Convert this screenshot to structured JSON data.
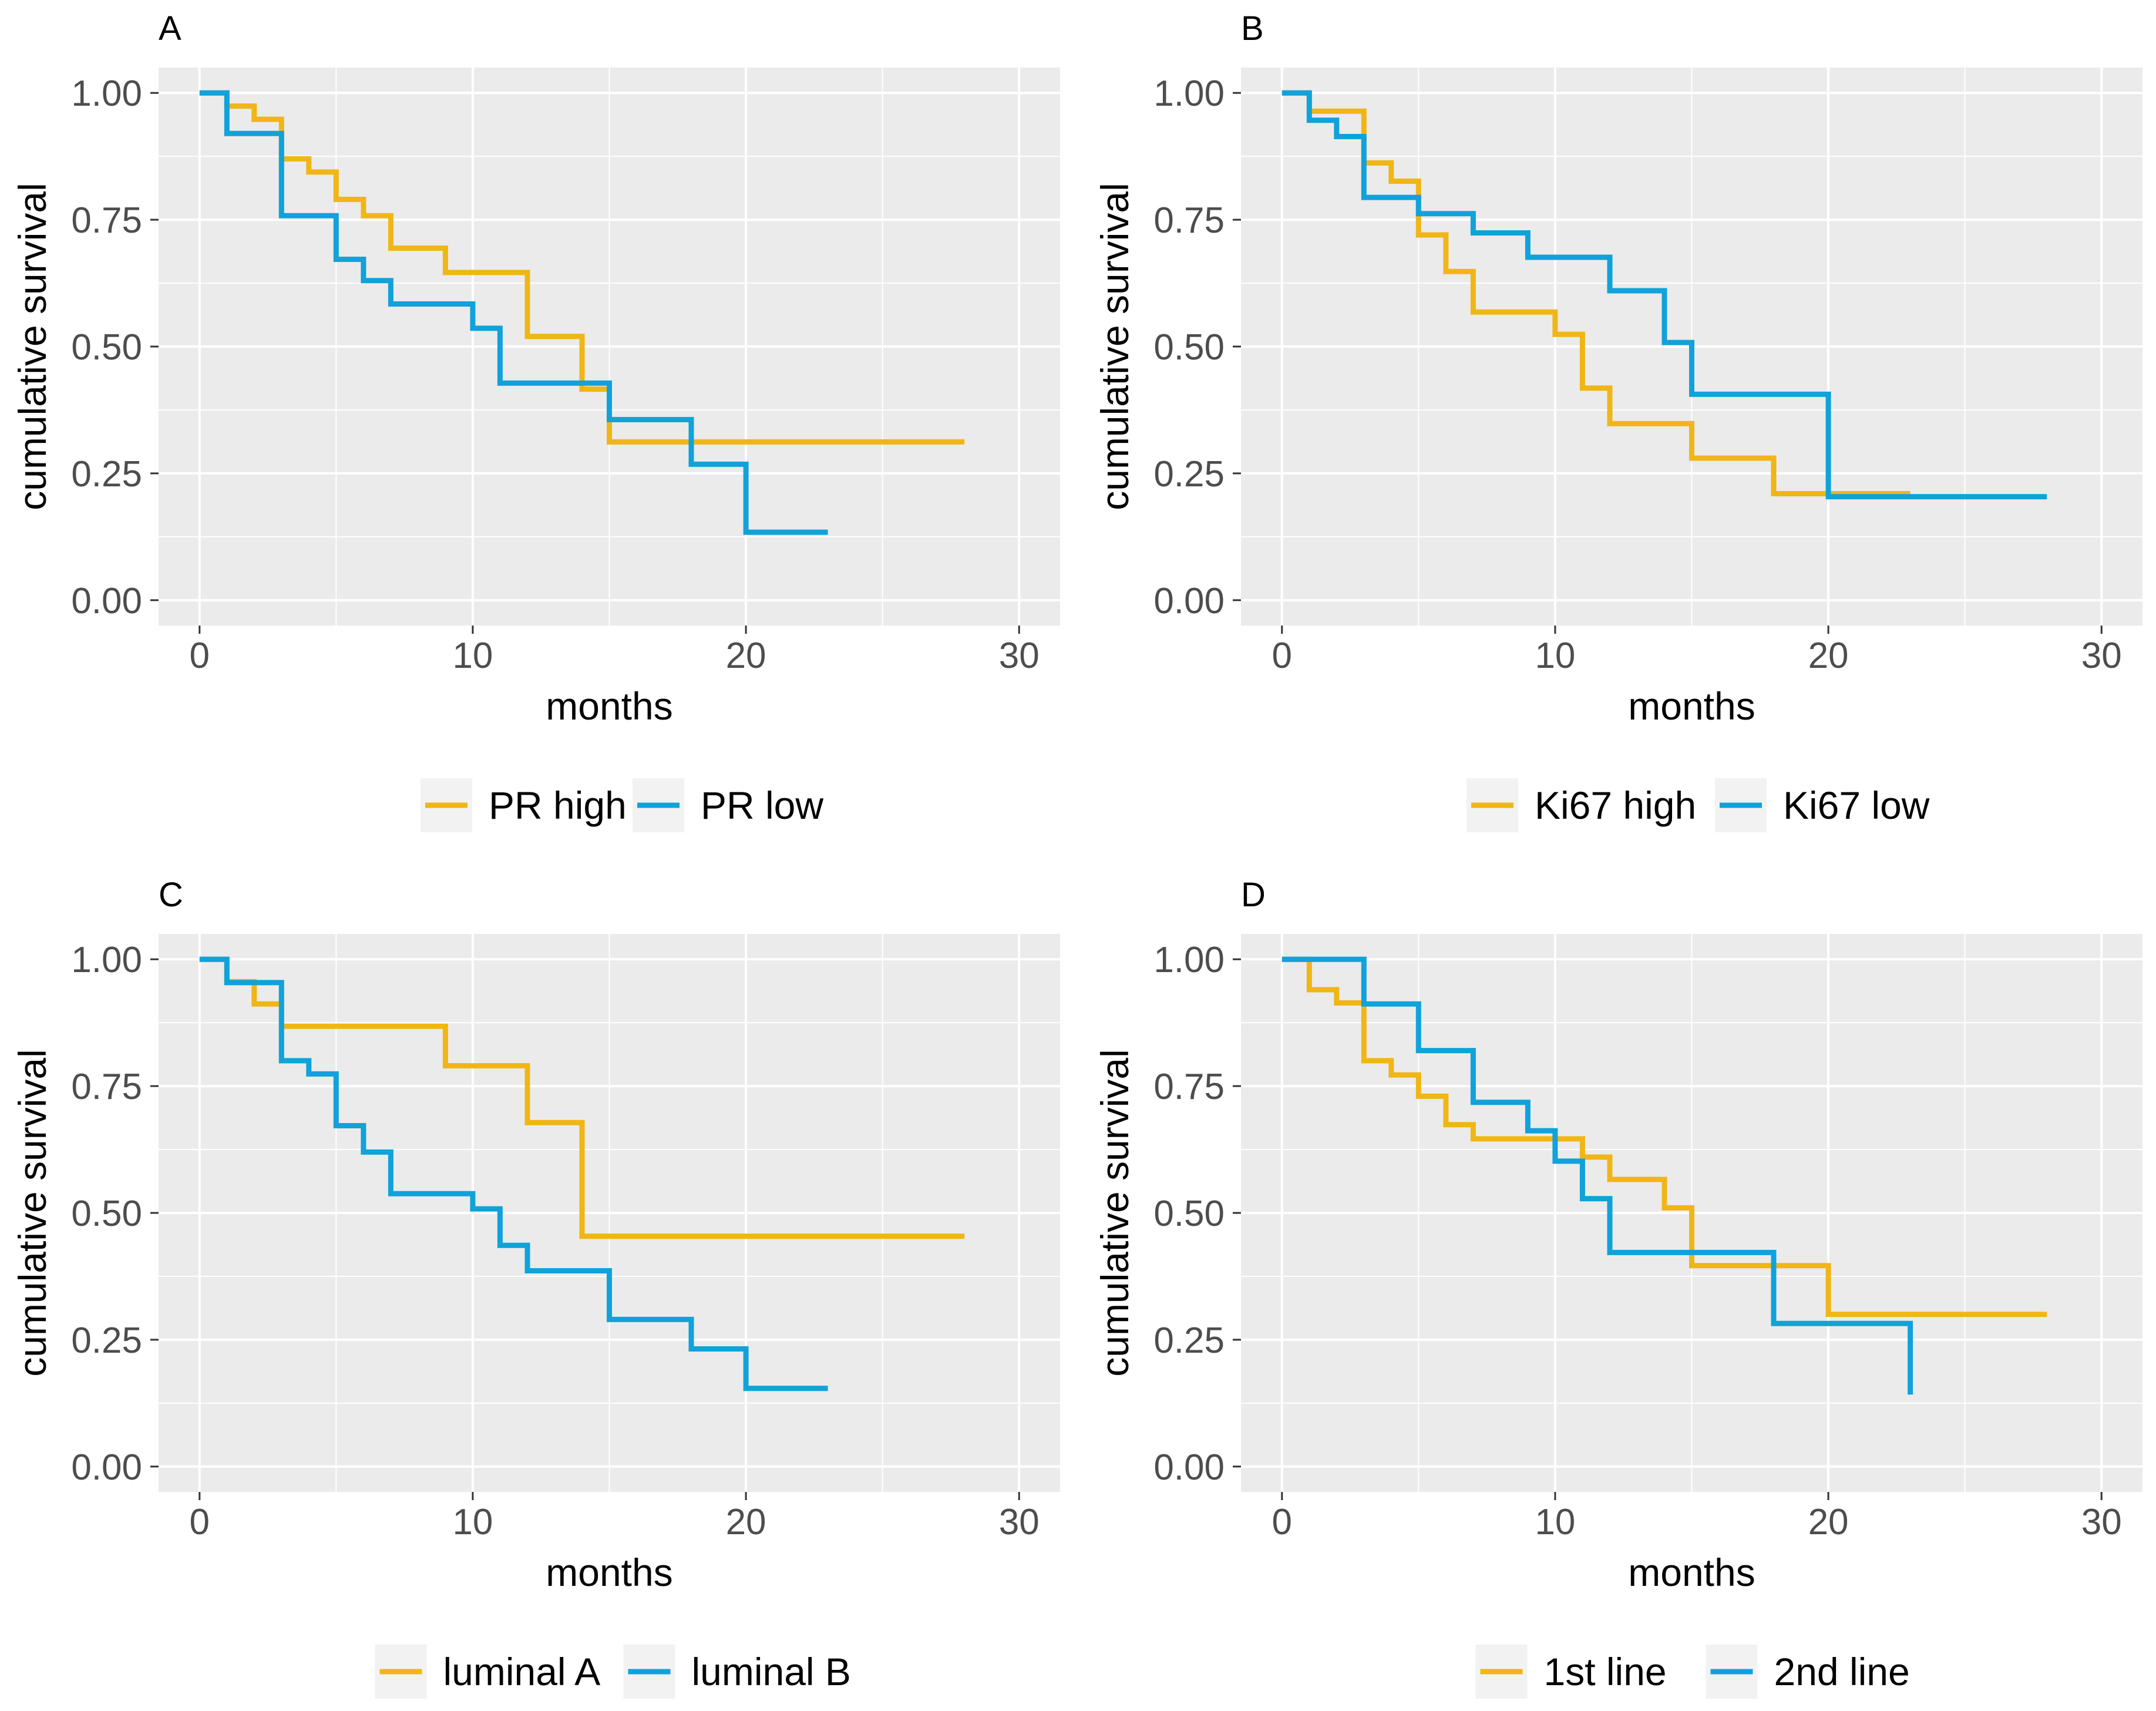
{
  "palette": {
    "high": "#F0B616",
    "low": "#10A2DA",
    "panel_bg": "#EBEBEB",
    "grid": "#FFFFFF"
  },
  "chart_data": [
    {
      "type": "line",
      "subtype": "step (Kaplan-Meier)",
      "panel": "A",
      "xlabel": "months",
      "ylabel": "cumulative survival",
      "xlim": [
        -1.5,
        31.5
      ],
      "ylim": [
        -0.05,
        1.05
      ],
      "x_ticks": [
        "0",
        "10",
        "20",
        "30"
      ],
      "y_ticks": [
        "0.00",
        "0.25",
        "0.50",
        "0.75",
        "1.00"
      ],
      "grid": true,
      "legend_position": "bottom",
      "series": [
        {
          "name": "PR high",
          "color": "#F0B616",
          "points": [
            [
              0,
              1.0
            ],
            [
              1,
              1.0
            ],
            [
              1,
              0.974
            ],
            [
              2,
              0.974
            ],
            [
              2,
              0.948
            ],
            [
              3,
              0.948
            ],
            [
              3,
              0.87
            ],
            [
              4,
              0.87
            ],
            [
              4,
              0.844
            ],
            [
              5,
              0.844
            ],
            [
              5,
              0.79
            ],
            [
              6,
              0.79
            ],
            [
              6,
              0.758
            ],
            [
              7,
              0.758
            ],
            [
              7,
              0.694
            ],
            [
              9,
              0.694
            ],
            [
              9,
              0.646
            ],
            [
              12,
              0.646
            ],
            [
              12,
              0.52
            ],
            [
              14,
              0.52
            ],
            [
              14,
              0.416
            ],
            [
              15,
              0.416
            ],
            [
              15,
              0.312
            ],
            [
              28,
              0.312
            ]
          ]
        },
        {
          "name": "PR low",
          "color": "#10A2DA",
          "points": [
            [
              0,
              1.0
            ],
            [
              1,
              1.0
            ],
            [
              1,
              0.92
            ],
            [
              3,
              0.92
            ],
            [
              3,
              0.758
            ],
            [
              5,
              0.758
            ],
            [
              5,
              0.672
            ],
            [
              6,
              0.672
            ],
            [
              6,
              0.63
            ],
            [
              7,
              0.63
            ],
            [
              7,
              0.584
            ],
            [
              10,
              0.584
            ],
            [
              10,
              0.536
            ],
            [
              11,
              0.536
            ],
            [
              11,
              0.428
            ],
            [
              15,
              0.428
            ],
            [
              15,
              0.356
            ],
            [
              18,
              0.356
            ],
            [
              18,
              0.268
            ],
            [
              20,
              0.268
            ],
            [
              20,
              0.134
            ],
            [
              23,
              0.134
            ]
          ]
        }
      ]
    },
    {
      "type": "line",
      "subtype": "step (Kaplan-Meier)",
      "panel": "B",
      "xlabel": "months",
      "ylabel": "cumulative survival",
      "xlim": [
        -1.5,
        31.5
      ],
      "ylim": [
        -0.05,
        1.05
      ],
      "x_ticks": [
        "0",
        "10",
        "20",
        "30"
      ],
      "y_ticks": [
        "0.00",
        "0.25",
        "0.50",
        "0.75",
        "1.00"
      ],
      "grid": true,
      "legend_position": "bottom",
      "series": [
        {
          "name": "Ki67 high",
          "color": "#F0B616",
          "points": [
            [
              0,
              1.0
            ],
            [
              1,
              1.0
            ],
            [
              1,
              0.964
            ],
            [
              3,
              0.964
            ],
            [
              3,
              0.862
            ],
            [
              4,
              0.862
            ],
            [
              4,
              0.826
            ],
            [
              5,
              0.826
            ],
            [
              5,
              0.72
            ],
            [
              6,
              0.72
            ],
            [
              6,
              0.648
            ],
            [
              7,
              0.648
            ],
            [
              7,
              0.568
            ],
            [
              10,
              0.568
            ],
            [
              10,
              0.524
            ],
            [
              11,
              0.524
            ],
            [
              11,
              0.418
            ],
            [
              12,
              0.418
            ],
            [
              12,
              0.348
            ],
            [
              15,
              0.348
            ],
            [
              15,
              0.28
            ],
            [
              18,
              0.28
            ],
            [
              18,
              0.21
            ],
            [
              23,
              0.21
            ]
          ]
        },
        {
          "name": "Ki67 low",
          "color": "#10A2DA",
          "points": [
            [
              0,
              1.0
            ],
            [
              1,
              1.0
            ],
            [
              1,
              0.946
            ],
            [
              2,
              0.946
            ],
            [
              2,
              0.914
            ],
            [
              3,
              0.914
            ],
            [
              3,
              0.794
            ],
            [
              5,
              0.794
            ],
            [
              5,
              0.762
            ],
            [
              7,
              0.762
            ],
            [
              7,
              0.724
            ],
            [
              9,
              0.724
            ],
            [
              9,
              0.676
            ],
            [
              12,
              0.676
            ],
            [
              12,
              0.61
            ],
            [
              14,
              0.61
            ],
            [
              14,
              0.508
            ],
            [
              15,
              0.508
            ],
            [
              15,
              0.406
            ],
            [
              20,
              0.406
            ],
            [
              20,
              0.204
            ],
            [
              28,
              0.204
            ]
          ]
        }
      ]
    },
    {
      "type": "line",
      "subtype": "step (Kaplan-Meier)",
      "panel": "C",
      "xlabel": "months",
      "ylabel": "cumulative survival",
      "xlim": [
        -1.5,
        31.5
      ],
      "ylim": [
        -0.05,
        1.05
      ],
      "x_ticks": [
        "0",
        "10",
        "20",
        "30"
      ],
      "y_ticks": [
        "0.00",
        "0.25",
        "0.50",
        "0.75",
        "1.00"
      ],
      "grid": true,
      "legend_position": "bottom",
      "series": [
        {
          "name": "luminal A",
          "color": "#F0B616",
          "points": [
            [
              0,
              1.0
            ],
            [
              1,
              1.0
            ],
            [
              1,
              0.956
            ],
            [
              2,
              0.956
            ],
            [
              2,
              0.912
            ],
            [
              3,
              0.912
            ],
            [
              3,
              0.868
            ],
            [
              9,
              0.868
            ],
            [
              9,
              0.79
            ],
            [
              12,
              0.79
            ],
            [
              12,
              0.678
            ],
            [
              14,
              0.678
            ],
            [
              14,
              0.454
            ],
            [
              28,
              0.454
            ]
          ]
        },
        {
          "name": "luminal B",
          "color": "#10A2DA",
          "points": [
            [
              0,
              1.0
            ],
            [
              1,
              1.0
            ],
            [
              1,
              0.954
            ],
            [
              3,
              0.954
            ],
            [
              3,
              0.8
            ],
            [
              4,
              0.8
            ],
            [
              4,
              0.774
            ],
            [
              5,
              0.774
            ],
            [
              5,
              0.672
            ],
            [
              6,
              0.672
            ],
            [
              6,
              0.62
            ],
            [
              7,
              0.62
            ],
            [
              7,
              0.538
            ],
            [
              10,
              0.538
            ],
            [
              10,
              0.508
            ],
            [
              11,
              0.508
            ],
            [
              11,
              0.436
            ],
            [
              12,
              0.436
            ],
            [
              12,
              0.386
            ],
            [
              15,
              0.386
            ],
            [
              15,
              0.29
            ],
            [
              18,
              0.29
            ],
            [
              18,
              0.232
            ],
            [
              20,
              0.232
            ],
            [
              20,
              0.154
            ],
            [
              23,
              0.154
            ]
          ]
        }
      ]
    },
    {
      "type": "line",
      "subtype": "step (Kaplan-Meier)",
      "panel": "D",
      "xlabel": "months",
      "ylabel": "cumulative survival",
      "xlim": [
        -1.5,
        31.5
      ],
      "ylim": [
        -0.05,
        1.05
      ],
      "x_ticks": [
        "0",
        "10",
        "20",
        "30"
      ],
      "y_ticks": [
        "0.00",
        "0.25",
        "0.50",
        "0.75",
        "1.00"
      ],
      "grid": true,
      "legend_position": "bottom",
      "series": [
        {
          "name": "1st line",
          "color": "#F0B616",
          "points": [
            [
              0,
              1.0
            ],
            [
              1,
              1.0
            ],
            [
              1,
              0.94
            ],
            [
              2,
              0.94
            ],
            [
              2,
              0.914
            ],
            [
              3,
              0.914
            ],
            [
              3,
              0.8
            ],
            [
              4,
              0.8
            ],
            [
              4,
              0.772
            ],
            [
              5,
              0.772
            ],
            [
              5,
              0.73
            ],
            [
              6,
              0.73
            ],
            [
              6,
              0.674
            ],
            [
              7,
              0.674
            ],
            [
              7,
              0.646
            ],
            [
              11,
              0.646
            ],
            [
              11,
              0.61
            ],
            [
              12,
              0.61
            ],
            [
              12,
              0.566
            ],
            [
              14,
              0.566
            ],
            [
              14,
              0.51
            ],
            [
              15,
              0.51
            ],
            [
              15,
              0.396
            ],
            [
              20,
              0.396
            ],
            [
              20,
              0.3
            ],
            [
              28,
              0.3
            ]
          ]
        },
        {
          "name": "2nd line",
          "color": "#10A2DA",
          "points": [
            [
              0,
              1.0
            ],
            [
              3,
              1.0
            ],
            [
              3,
              0.912
            ],
            [
              5,
              0.912
            ],
            [
              5,
              0.82
            ],
            [
              7,
              0.82
            ],
            [
              7,
              0.718
            ],
            [
              9,
              0.718
            ],
            [
              9,
              0.662
            ],
            [
              10,
              0.662
            ],
            [
              10,
              0.602
            ],
            [
              11,
              0.602
            ],
            [
              11,
              0.528
            ],
            [
              12,
              0.528
            ],
            [
              12,
              0.422
            ],
            [
              18,
              0.422
            ],
            [
              18,
              0.282
            ],
            [
              23,
              0.282
            ],
            [
              23,
              0.142
            ]
          ]
        }
      ]
    }
  ]
}
